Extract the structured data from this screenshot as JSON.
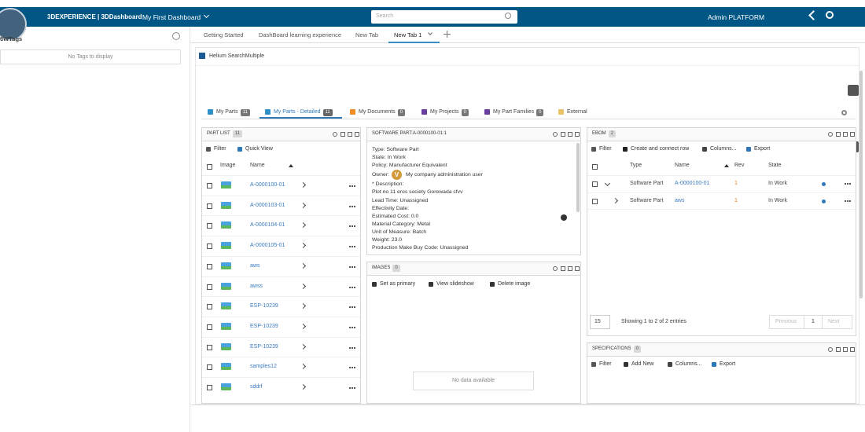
{
  "header": {
    "brand": "3DEXPERIENCE | 3DDashboard",
    "dashboard": "My First Dashboard",
    "search": "Search",
    "user": "Admin PLATFORM"
  },
  "tags_panel": {
    "title": "6WTags",
    "empty": "No Tags to display"
  },
  "tabs": [
    "Getting Started",
    "DashBoard learning experience",
    "New Tab",
    "New Tab 1"
  ],
  "widget": {
    "title": "Helium SearchMultiple"
  },
  "subtabs": [
    {
      "label": "My Parts",
      "count": "11"
    },
    {
      "label": "My Parts - Detailed",
      "count": "11"
    },
    {
      "label": "My Documents",
      "count": "0"
    },
    {
      "label": "My Projects",
      "count": "0"
    },
    {
      "label": "My Part Families",
      "count": "0"
    },
    {
      "label": "External"
    }
  ],
  "part_list": {
    "title": "PART LIST",
    "count": "11",
    "actions": [
      "Filter",
      "Quick View"
    ],
    "columns": [
      "Image",
      "Name"
    ],
    "rows": [
      "A-0000100-01",
      "A-0000103-01",
      "A-0000104-01",
      "A-0000105-01",
      "aws",
      "awss",
      "ESP-10239",
      "ESP-10239",
      "ESP-10239",
      "samples12",
      "sddrf"
    ]
  },
  "part_detail": {
    "title": "SOFTWARE PART:A-0000100-01:1",
    "fields": [
      "Type: Software Part",
      "State: In Work",
      "Policy: Manufacturer Equivalent",
      {
        "label": "Owner:",
        "initial": "V",
        "name": "My company administration user"
      },
      "* Description:",
      "Plot no 11 eros society Gorewada cfvv",
      "Lead Time: Unassigned",
      "Effectivity Date:",
      "Estimated Cost: 0.0",
      "Material Category: Metal",
      "Unit of Measure: Batch",
      "Weight: 23.0",
      "Production Make Buy Code: Unassigned"
    ]
  },
  "images": {
    "title": "IMAGES",
    "count": "0",
    "actions": [
      "Set as primary",
      "View slideshow",
      "Delete image"
    ],
    "empty": "No data available"
  },
  "ebom": {
    "title": "EBOM",
    "count": "2",
    "actions": [
      "Filter",
      "Create and connect row",
      "Columns...",
      "Export"
    ],
    "columns": [
      "Type",
      "Name",
      "Rev",
      "State"
    ],
    "rows": [
      [
        "Software Part",
        "A-0000100-01",
        "1",
        "In Work"
      ],
      [
        "Software Part",
        "aws",
        "1",
        "In Work"
      ]
    ],
    "page_size": "15",
    "summary": "Showing 1 to 2 of 2 entries",
    "pager": [
      "Previous",
      "1",
      "Next"
    ]
  },
  "specifications": {
    "title": "SPECIFICATIONS",
    "count": "0",
    "actions": [
      "Filter",
      "Add New",
      "Columns...",
      "Export"
    ]
  }
}
